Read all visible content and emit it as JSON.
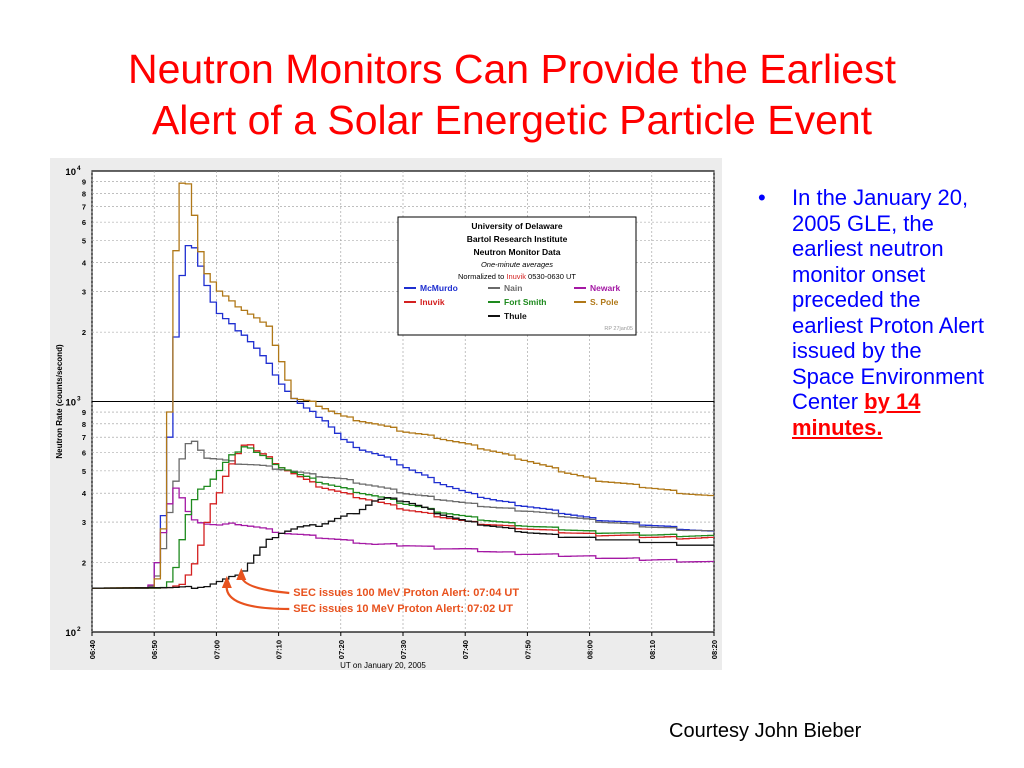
{
  "slide": {
    "title_line1": "Neutron Monitors Can Provide the Earliest",
    "title_line2": "Alert of a Solar Energetic Particle Event",
    "bullet_marker": "•",
    "bullet_text": "In the January 20, 2005 GLE, the earliest neutron monitor onset preceded the earliest Proton Alert issued by the Space Environment Center ",
    "bullet_highlight": "by 14 minutes.",
    "credit": "Courtesy John Bieber"
  },
  "colors": {
    "title": "#ff0000",
    "bullet": "#0000ff",
    "highlight": "#ff0000",
    "annotation": "#e8521e"
  },
  "chart_data": {
    "type": "line",
    "title": "",
    "xlabel": "UT on January 20, 2005",
    "ylabel": "Neutron Rate (counts/second)",
    "y_scale": "log",
    "ylim": [
      100,
      10000
    ],
    "xlim": [
      "06:40",
      "08:20"
    ],
    "x_ticks": [
      "06:40",
      "06:50",
      "07:00",
      "07:10",
      "07:20",
      "07:30",
      "07:40",
      "07:50",
      "08:00",
      "08:10",
      "08:20"
    ],
    "y_major_ticks": [
      {
        "value": 100,
        "base": "10",
        "exp": "2"
      },
      {
        "value": 1000,
        "base": "10",
        "exp": "3"
      },
      {
        "value": 10000,
        "base": "10",
        "exp": "4"
      }
    ],
    "y_minor_tick_labels": [
      "2",
      "3",
      "4",
      "5",
      "6",
      "7",
      "8",
      "9"
    ],
    "grid": true,
    "legend": {
      "placement": "top-right",
      "header": [
        "University of Delaware",
        "Bartol Research Institute",
        "Neutron Monitor Data"
      ],
      "subheader": "One-minute averages",
      "normalized_prefix": "Normalized to ",
      "normalized_station": "Inuvik",
      "normalized_suffix": " 0530-0630 UT",
      "credit_tag": "RP 27jan05"
    },
    "series": [
      {
        "name": "McMurdo",
        "color": "#1f2fd0",
        "points": [
          [
            "06:40",
            155
          ],
          [
            "06:48",
            155
          ],
          [
            "06:49",
            158
          ],
          [
            "06:50",
            200
          ],
          [
            "06:51",
            320
          ],
          [
            "06:52",
            700
          ],
          [
            "06:53",
            1900
          ],
          [
            "06:54",
            3500
          ],
          [
            "06:55",
            4700
          ],
          [
            "06:56",
            4700
          ],
          [
            "06:57",
            3900
          ],
          [
            "06:58",
            3200
          ],
          [
            "06:59",
            2700
          ],
          [
            "07:00",
            2400
          ],
          [
            "07:02",
            2150
          ],
          [
            "07:04",
            1950
          ],
          [
            "07:06",
            1700
          ],
          [
            "07:08",
            1450
          ],
          [
            "07:10",
            1200
          ],
          [
            "07:12",
            1030
          ],
          [
            "07:14",
            930
          ],
          [
            "07:17",
            830
          ],
          [
            "07:20",
            680
          ],
          [
            "07:23",
            620
          ],
          [
            "07:27",
            570
          ],
          [
            "07:30",
            520
          ],
          [
            "07:35",
            450
          ],
          [
            "07:40",
            400
          ],
          [
            "07:45",
            370
          ],
          [
            "07:50",
            350
          ],
          [
            "07:55",
            330
          ],
          [
            "08:00",
            310
          ],
          [
            "08:05",
            300
          ],
          [
            "08:10",
            290
          ],
          [
            "08:15",
            280
          ],
          [
            "08:20",
            270
          ]
        ]
      },
      {
        "name": "Nain",
        "color": "#6a6a6a",
        "points": [
          [
            "06:40",
            155
          ],
          [
            "06:48",
            155
          ],
          [
            "06:49",
            158
          ],
          [
            "06:50",
            175
          ],
          [
            "06:51",
            230
          ],
          [
            "06:52",
            330
          ],
          [
            "06:53",
            450
          ],
          [
            "06:54",
            560
          ],
          [
            "06:55",
            650
          ],
          [
            "06:56",
            680
          ],
          [
            "06:57",
            620
          ],
          [
            "06:58",
            570
          ],
          [
            "07:00",
            560
          ],
          [
            "07:03",
            540
          ],
          [
            "07:06",
            530
          ],
          [
            "07:10",
            510
          ],
          [
            "07:15",
            480
          ],
          [
            "07:20",
            460
          ],
          [
            "07:25",
            430
          ],
          [
            "07:30",
            400
          ],
          [
            "07:35",
            380
          ],
          [
            "07:40",
            360
          ],
          [
            "07:45",
            345
          ],
          [
            "07:50",
            335
          ],
          [
            "07:55",
            320
          ],
          [
            "08:00",
            305
          ],
          [
            "08:05",
            295
          ],
          [
            "08:10",
            285
          ],
          [
            "08:15",
            278
          ],
          [
            "08:20",
            272
          ]
        ]
      },
      {
        "name": "Newark",
        "color": "#a418a4",
        "points": [
          [
            "06:40",
            155
          ],
          [
            "06:48",
            155
          ],
          [
            "06:49",
            160
          ],
          [
            "06:50",
            200
          ],
          [
            "06:51",
            270
          ],
          [
            "06:52",
            360
          ],
          [
            "06:53",
            420
          ],
          [
            "06:54",
            380
          ],
          [
            "06:55",
            330
          ],
          [
            "06:56",
            310
          ],
          [
            "06:57",
            300
          ],
          [
            "06:58",
            295
          ],
          [
            "07:00",
            290
          ],
          [
            "07:03",
            295
          ],
          [
            "07:06",
            285
          ],
          [
            "07:10",
            270
          ],
          [
            "07:15",
            260
          ],
          [
            "07:20",
            250
          ],
          [
            "07:25",
            240
          ],
          [
            "07:30",
            238
          ],
          [
            "07:35",
            232
          ],
          [
            "07:40",
            228
          ],
          [
            "07:45",
            222
          ],
          [
            "07:50",
            218
          ],
          [
            "07:55",
            215
          ],
          [
            "08:00",
            212
          ],
          [
            "08:05",
            208
          ],
          [
            "08:10",
            206
          ],
          [
            "08:15",
            203
          ],
          [
            "08:20",
            200
          ]
        ]
      },
      {
        "name": "Inuvik",
        "color": "#d42020",
        "points": [
          [
            "06:40",
            155
          ],
          [
            "06:50",
            155
          ],
          [
            "06:52",
            156
          ],
          [
            "06:54",
            160
          ],
          [
            "06:55",
            175
          ],
          [
            "06:56",
            200
          ],
          [
            "06:57",
            240
          ],
          [
            "06:58",
            300
          ],
          [
            "06:59",
            360
          ],
          [
            "07:00",
            400
          ],
          [
            "07:01",
            470
          ],
          [
            "07:02",
            530
          ],
          [
            "07:03",
            600
          ],
          [
            "07:04",
            650
          ],
          [
            "07:05",
            650
          ],
          [
            "07:06",
            610
          ],
          [
            "07:08",
            570
          ],
          [
            "07:10",
            520
          ],
          [
            "07:13",
            470
          ],
          [
            "07:16",
            430
          ],
          [
            "07:20",
            400
          ],
          [
            "07:25",
            370
          ],
          [
            "07:30",
            340
          ],
          [
            "07:35",
            320
          ],
          [
            "07:40",
            300
          ],
          [
            "07:45",
            290
          ],
          [
            "07:50",
            280
          ],
          [
            "07:55",
            272
          ],
          [
            "08:00",
            265
          ],
          [
            "08:05",
            262
          ],
          [
            "08:10",
            258
          ],
          [
            "08:15",
            256
          ],
          [
            "08:20",
            255
          ]
        ]
      },
      {
        "name": "Fort Smith",
        "color": "#1e8a1e",
        "points": [
          [
            "06:40",
            155
          ],
          [
            "06:50",
            155
          ],
          [
            "06:51",
            156
          ],
          [
            "06:52",
            165
          ],
          [
            "06:53",
            190
          ],
          [
            "06:54",
            250
          ],
          [
            "06:55",
            320
          ],
          [
            "06:56",
            380
          ],
          [
            "06:57",
            420
          ],
          [
            "06:58",
            430
          ],
          [
            "06:59",
            460
          ],
          [
            "07:00",
            500
          ],
          [
            "07:01",
            540
          ],
          [
            "07:02",
            580
          ],
          [
            "07:03",
            610
          ],
          [
            "07:04",
            640
          ],
          [
            "07:05",
            630
          ],
          [
            "07:06",
            600
          ],
          [
            "07:08",
            560
          ],
          [
            "07:10",
            520
          ],
          [
            "07:13",
            480
          ],
          [
            "07:16",
            450
          ],
          [
            "07:20",
            420
          ],
          [
            "07:25",
            390
          ],
          [
            "07:30",
            360
          ],
          [
            "07:35",
            335
          ],
          [
            "07:40",
            315
          ],
          [
            "07:45",
            300
          ],
          [
            "07:50",
            288
          ],
          [
            "07:55",
            280
          ],
          [
            "08:00",
            272
          ],
          [
            "08:05",
            268
          ],
          [
            "08:10",
            264
          ],
          [
            "08:15",
            262
          ],
          [
            "08:20",
            260
          ]
        ]
      },
      {
        "name": "S. Pole",
        "color": "#b07818",
        "points": [
          [
            "06:40",
            155
          ],
          [
            "06:49",
            156
          ],
          [
            "06:50",
            170
          ],
          [
            "06:51",
            280
          ],
          [
            "06:52",
            900
          ],
          [
            "06:53",
            4500
          ],
          [
            "06:54",
            8800
          ],
          [
            "06:55",
            8700
          ],
          [
            "06:56",
            6500
          ],
          [
            "06:57",
            4500
          ],
          [
            "06:58",
            3600
          ],
          [
            "06:59",
            3300
          ],
          [
            "07:00",
            3000
          ],
          [
            "07:02",
            2700
          ],
          [
            "07:04",
            2500
          ],
          [
            "07:06",
            2300
          ],
          [
            "07:08",
            2100
          ],
          [
            "07:10",
            1500
          ],
          [
            "07:12",
            1030
          ],
          [
            "07:15",
            990
          ],
          [
            "07:20",
            860
          ],
          [
            "07:25",
            800
          ],
          [
            "07:30",
            740
          ],
          [
            "07:35",
            700
          ],
          [
            "07:40",
            650
          ],
          [
            "07:45",
            600
          ],
          [
            "07:50",
            550
          ],
          [
            "07:55",
            500
          ],
          [
            "08:00",
            460
          ],
          [
            "08:05",
            440
          ],
          [
            "08:10",
            420
          ],
          [
            "08:15",
            400
          ],
          [
            "08:20",
            385
          ]
        ]
      },
      {
        "name": "Thule",
        "color": "#111111",
        "points": [
          [
            "06:40",
            155
          ],
          [
            "06:55",
            156
          ],
          [
            "06:58",
            158
          ],
          [
            "07:00",
            165
          ],
          [
            "07:02",
            172
          ],
          [
            "07:04",
            185
          ],
          [
            "07:06",
            215
          ],
          [
            "07:08",
            250
          ],
          [
            "07:10",
            270
          ],
          [
            "07:13",
            285
          ],
          [
            "07:16",
            290
          ],
          [
            "07:19",
            310
          ],
          [
            "07:22",
            330
          ],
          [
            "07:25",
            370
          ],
          [
            "07:27",
            380
          ],
          [
            "07:30",
            370
          ],
          [
            "07:35",
            330
          ],
          [
            "07:40",
            300
          ],
          [
            "07:45",
            285
          ],
          [
            "07:50",
            270
          ],
          [
            "07:55",
            260
          ],
          [
            "08:00",
            255
          ],
          [
            "08:05",
            250
          ],
          [
            "08:10",
            245
          ],
          [
            "08:15",
            240
          ],
          [
            "08:20",
            235
          ]
        ]
      }
    ],
    "annotations": [
      {
        "text": "SEC issues 100 MeV Proton Alert: 07:04 UT",
        "time": "07:04"
      },
      {
        "text": "SEC issues 10 MeV Proton Alert: 07:02 UT",
        "time": "07:02"
      }
    ]
  }
}
